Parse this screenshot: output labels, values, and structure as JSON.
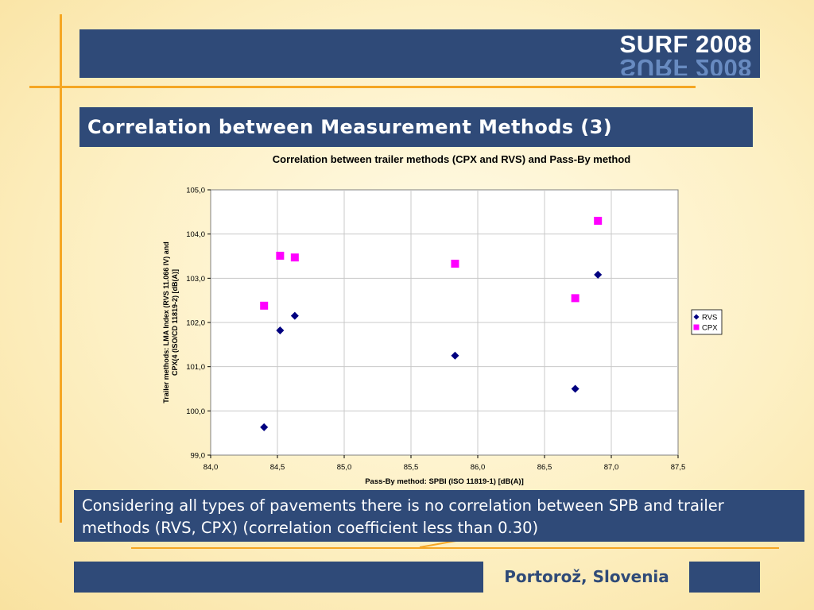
{
  "header": {
    "logo_text": "SURF 2008"
  },
  "slide": {
    "title": "Correlation between Measurement Methods (3)"
  },
  "note": {
    "text": "Considering all types of pavements there is no correlation between SPB and trailer methods (RVS, CPX) (correlation coefficient less than 0.30)"
  },
  "footer": {
    "location": "Portorož, Slovenia"
  },
  "colors": {
    "accent": "#f5a623",
    "brand_blue": "#2f4a78",
    "rvs": "#000080",
    "cpx": "#ff00ff"
  },
  "chart_data": {
    "type": "scatter",
    "title": "Correlation between trailer methods (CPX and RVS) and Pass-By method",
    "xlabel": "Pass-By method: SPBI (ISO 11819-1) [dB(A)]",
    "ylabel_lines": [
      "Trailer methods: LMA Index (RVS 11.066 IV) and",
      "CPX(4 (ISO/CD 11819-2) [dB(A)]"
    ],
    "xlim": [
      84.0,
      87.5
    ],
    "ylim": [
      99.0,
      105.0
    ],
    "x_ticks": [
      "84,0",
      "84,5",
      "85,0",
      "85,5",
      "86,0",
      "86,5",
      "87,0",
      "87,5"
    ],
    "y_ticks": [
      "99,0",
      "100,0",
      "101,0",
      "102,0",
      "103,0",
      "104,0",
      "105,0"
    ],
    "grid": true,
    "legend_position": "right",
    "series": [
      {
        "name": "RVS",
        "marker": "diamond",
        "color": "#000080",
        "points": [
          [
            84.4,
            99.63
          ],
          [
            84.52,
            101.82
          ],
          [
            84.63,
            102.15
          ],
          [
            85.83,
            101.25
          ],
          [
            86.73,
            100.5
          ],
          [
            86.9,
            103.08
          ]
        ]
      },
      {
        "name": "CPX",
        "marker": "square",
        "color": "#ff00ff",
        "points": [
          [
            84.4,
            102.38
          ],
          [
            84.52,
            103.51
          ],
          [
            84.63,
            103.47
          ],
          [
            85.83,
            103.33
          ],
          [
            86.73,
            102.55
          ],
          [
            86.9,
            104.3
          ]
        ]
      }
    ]
  }
}
